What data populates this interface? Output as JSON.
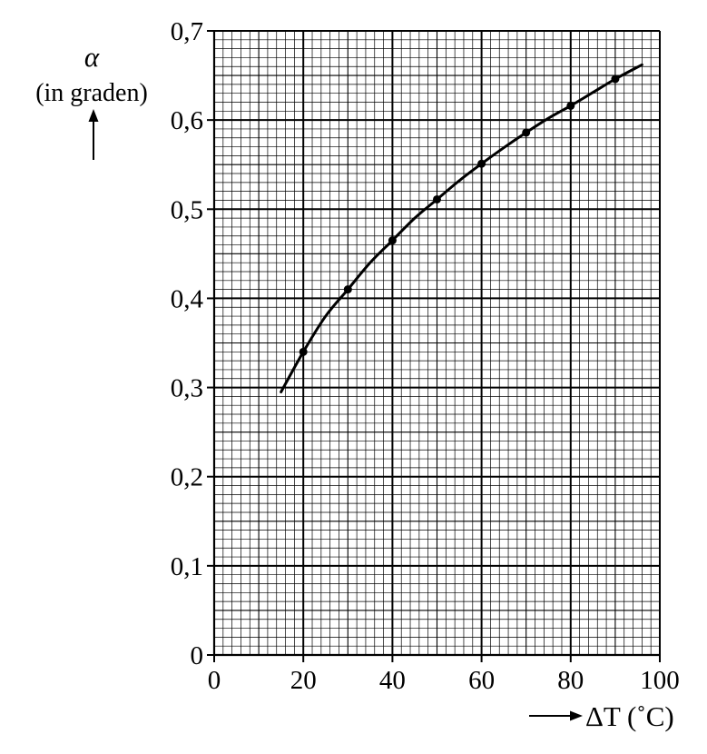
{
  "chart_data": {
    "type": "line",
    "title": "",
    "xlabel": "ΔT (˚C)",
    "ylabel": "α",
    "ylabel_unit": "(in graden)",
    "xlim": [
      0,
      100
    ],
    "ylim": [
      0,
      0.7
    ],
    "x_ticks": [
      0,
      20,
      40,
      60,
      80,
      100
    ],
    "x_tick_labels": [
      "0",
      "20",
      "40",
      "60",
      "80",
      "100"
    ],
    "y_ticks": [
      0,
      0.1,
      0.2,
      0.3,
      0.4,
      0.5,
      0.6,
      0.7
    ],
    "y_tick_labels": [
      "0",
      "0,1",
      "0,2",
      "0,3",
      "0,4",
      "0,5",
      "0,6",
      "0,7"
    ],
    "grid": true,
    "series": [
      {
        "kind": "points",
        "x": [
          20,
          30,
          40,
          50,
          60,
          70,
          80,
          90
        ],
        "y": [
          0.34,
          0.41,
          0.465,
          0.511,
          0.551,
          0.586,
          0.616,
          0.646
        ]
      },
      {
        "kind": "curve",
        "x": [
          15,
          20,
          25,
          30,
          35,
          40,
          45,
          50,
          55,
          60,
          65,
          70,
          75,
          80,
          85,
          90,
          96
        ],
        "y": [
          0.295,
          0.34,
          0.38,
          0.41,
          0.44,
          0.465,
          0.49,
          0.511,
          0.532,
          0.551,
          0.569,
          0.586,
          0.602,
          0.616,
          0.631,
          0.646,
          0.662
        ]
      }
    ]
  }
}
